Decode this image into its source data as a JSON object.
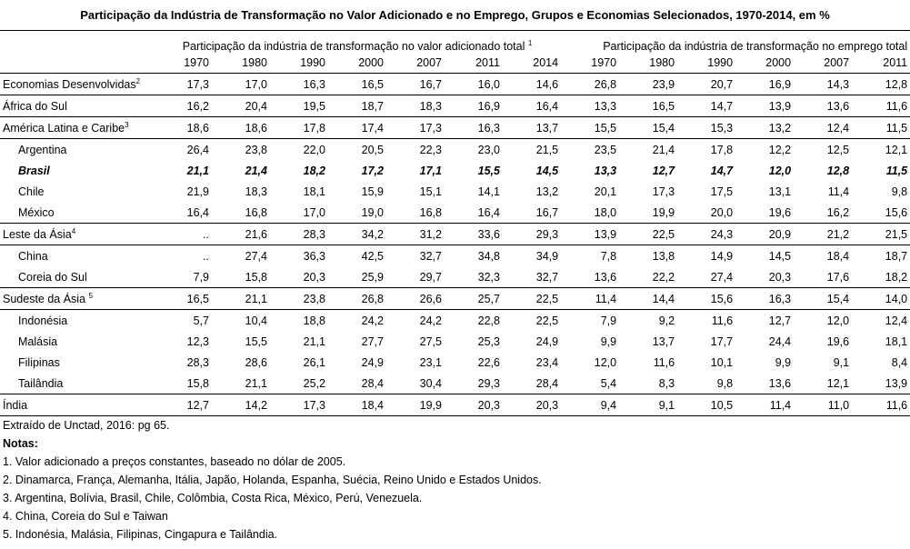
{
  "title": "Participação da Indústria de Transformação no Valor Adicionado e no Emprego, Grupos e Economias Selecionados, 1970-2014, em %",
  "header": {
    "value_added": {
      "label": "Participação da indústria de transformação no valor adicionado  total",
      "note": "1",
      "years": [
        "1970",
        "1980",
        "1990",
        "2000",
        "2007",
        "2011",
        "2014"
      ]
    },
    "employment": {
      "label": "Participação da indústria de transformação no emprego total",
      "years": [
        "1970",
        "1980",
        "1990",
        "2000",
        "2007",
        "2011"
      ]
    }
  },
  "regions": [
    {
      "label": "Economias Desenvolvidas",
      "note": "2",
      "values": [
        "17,3",
        "17,0",
        "16,3",
        "16,5",
        "16,7",
        "16,0",
        "14,6",
        "26,8",
        "23,9",
        "20,7",
        "16,9",
        "14,3",
        "12,8"
      ]
    },
    {
      "label": "África do Sul",
      "values": [
        "16,2",
        "20,4",
        "19,5",
        "18,7",
        "18,3",
        "16,9",
        "16,4",
        "13,3",
        "16,5",
        "14,7",
        "13,9",
        "13,6",
        "11,6"
      ]
    },
    {
      "label": "América Latina e Caribe",
      "note": "3",
      "values": [
        "18,6",
        "18,6",
        "17,8",
        "17,4",
        "17,3",
        "16,3",
        "13,7",
        "15,5",
        "15,4",
        "15,3",
        "13,2",
        "12,4",
        "11,5"
      ],
      "countries": [
        {
          "label": "Argentina",
          "values": [
            "26,4",
            "23,8",
            "22,0",
            "20,5",
            "22,3",
            "23,0",
            "21,5",
            "23,5",
            "21,4",
            "17,8",
            "12,2",
            "12,5",
            "12,1"
          ]
        },
        {
          "label": "Brasil",
          "bold": true,
          "values": [
            "21,1",
            "21,4",
            "18,2",
            "17,2",
            "17,1",
            "15,5",
            "14,5",
            "13,3",
            "12,7",
            "14,7",
            "12,0",
            "12,8",
            "11,5"
          ]
        },
        {
          "label": "Chile",
          "values": [
            "21,9",
            "18,3",
            "18,1",
            "15,9",
            "15,1",
            "14,1",
            "13,2",
            "20,1",
            "17,3",
            "17,5",
            "13,1",
            "11,4",
            "9,8"
          ]
        },
        {
          "label": "México",
          "values": [
            "16,4",
            "16,8",
            "17,0",
            "19,0",
            "16,8",
            "16,4",
            "16,7",
            "18,0",
            "19,9",
            "20,0",
            "19,6",
            "16,2",
            "15,6"
          ]
        }
      ]
    },
    {
      "label": "Leste da Ásia",
      "note": "4",
      "values": [
        "..",
        "21,6",
        "28,3",
        "34,2",
        "31,2",
        "33,6",
        "29,3",
        "13,9",
        "22,5",
        "24,3",
        "20,9",
        "21,2",
        "21,5"
      ],
      "countries": [
        {
          "label": "China",
          "values": [
            "..",
            "27,4",
            "36,3",
            "42,5",
            "32,7",
            "34,8",
            "34,9",
            "7,8",
            "13,8",
            "14,9",
            "14,5",
            "18,4",
            "18,7"
          ]
        },
        {
          "label": "Coreia do Sul",
          "values": [
            "7,9",
            "15,8",
            "20,3",
            "25,9",
            "29,7",
            "32,3",
            "32,7",
            "13,6",
            "22,2",
            "27,4",
            "20,3",
            "17,6",
            "18,2"
          ]
        }
      ]
    },
    {
      "label": "Sudeste da Ásia",
      "note": "5",
      "values": [
        "16,5",
        "21,1",
        "23,8",
        "26,8",
        "26,6",
        "25,7",
        "22,5",
        "11,4",
        "14,4",
        "15,6",
        "16,3",
        "15,4",
        "14,0"
      ],
      "countries": [
        {
          "label": "Indonésia",
          "values": [
            "5,7",
            "10,4",
            "18,8",
            "24,2",
            "24,2",
            "22,8",
            "22,5",
            "7,9",
            "9,2",
            "11,6",
            "12,7",
            "12,0",
            "12,4"
          ]
        },
        {
          "label": "Malásia",
          "values": [
            "12,3",
            "15,5",
            "21,1",
            "27,7",
            "27,5",
            "25,3",
            "24,9",
            "9,9",
            "13,7",
            "17,7",
            "24,4",
            "19,6",
            "18,1"
          ]
        },
        {
          "label": "Filipinas",
          "values": [
            "28,3",
            "28,6",
            "26,1",
            "24,9",
            "23,1",
            "22,6",
            "23,4",
            "12,0",
            "11,6",
            "10,1",
            "9,9",
            "9,1",
            "8,4"
          ]
        },
        {
          "label": "Tailândia",
          "values": [
            "15,8",
            "21,1",
            "25,2",
            "28,4",
            "30,4",
            "29,3",
            "28,4",
            "5,4",
            "8,3",
            "9,8",
            "13,6",
            "12,1",
            "13,9"
          ]
        }
      ]
    },
    {
      "label": "Índia",
      "values": [
        "12,7",
        "14,2",
        "17,3",
        "18,4",
        "19,9",
        "20,3",
        "20,3",
        "9,4",
        "9,1",
        "10,5",
        "11,4",
        "11,0",
        "11,6"
      ]
    }
  ],
  "source": "Extraído de Unctad, 2016: pg 65.",
  "notes_title": "Notas:",
  "notes": [
    "1. Valor adicionado a preços constantes, baseado no dólar de 2005.",
    "2. Dinamarca, França, Alemanha, Itália, Japão, Holanda, Espanha, Suécia, Reino Unido e Estados Unidos.",
    "3. Argentina, Bolívia, Brasil, Chile, Colômbia, Costa Rica, México, Perú, Venezuela.",
    "4. China, Coreia do Sul e Taiwan",
    "5. Indonésia, Malásia, Filipinas, Cingapura e Tailândia."
  ]
}
